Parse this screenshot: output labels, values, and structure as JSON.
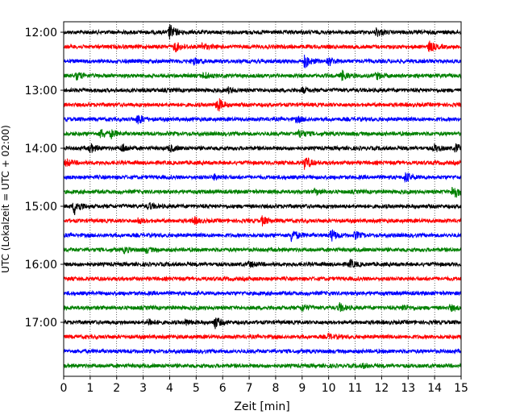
{
  "chart_data": {
    "type": "line",
    "title": "",
    "xlabel": "Zeit  [min]",
    "ylabel": "UTC (Lokalzeit = UTC + 02:00)",
    "xlim": [
      0,
      15
    ],
    "x_ticks": [
      "0",
      "1",
      "2",
      "3",
      "4",
      "5",
      "6",
      "7",
      "8",
      "9",
      "10",
      "11",
      "12",
      "13",
      "14",
      "15"
    ],
    "y_tick_labels": [
      "12:00",
      "13:00",
      "14:00",
      "15:00",
      "16:00",
      "17:00"
    ],
    "grid": "vertical dotted at each minute",
    "trace_colors": [
      "#000000",
      "#ff0000",
      "#0000ff",
      "#008000"
    ],
    "trace_interval_minutes": 15,
    "first_trace": "12:00",
    "last_trace": "17:45",
    "traces": [
      {
        "start": "12:00",
        "color": "#000000",
        "events": [
          [
            4.0,
            9
          ],
          [
            11.8,
            5
          ]
        ]
      },
      {
        "start": "12:15",
        "color": "#ff0000",
        "events": [
          [
            4.2,
            6
          ],
          [
            5.2,
            4
          ],
          [
            13.8,
            6
          ]
        ]
      },
      {
        "start": "12:30",
        "color": "#0000ff",
        "events": [
          [
            4.9,
            4
          ],
          [
            9.1,
            8
          ],
          [
            10.0,
            5
          ]
        ]
      },
      {
        "start": "12:45",
        "color": "#008000",
        "events": [
          [
            0.5,
            4
          ],
          [
            5.3,
            4
          ],
          [
            10.5,
            6
          ],
          [
            11.8,
            4
          ]
        ]
      },
      {
        "start": "13:00",
        "color": "#000000",
        "events": [
          [
            6.2,
            3
          ],
          [
            9.0,
            3
          ]
        ]
      },
      {
        "start": "13:15",
        "color": "#ff0000",
        "events": [
          [
            5.8,
            9
          ]
        ]
      },
      {
        "start": "13:30",
        "color": "#0000ff",
        "events": [
          [
            2.8,
            6
          ],
          [
            8.8,
            3
          ]
        ]
      },
      {
        "start": "13:45",
        "color": "#008000",
        "events": [
          [
            1.4,
            5
          ],
          [
            1.8,
            4
          ],
          [
            8.9,
            5
          ]
        ]
      },
      {
        "start": "14:00",
        "color": "#000000",
        "events": [
          [
            1.0,
            5
          ],
          [
            2.2,
            5
          ],
          [
            4.0,
            4
          ],
          [
            14.0,
            4
          ],
          [
            14.8,
            5
          ]
        ]
      },
      {
        "start": "14:15",
        "color": "#ff0000",
        "events": [
          [
            0.1,
            4
          ],
          [
            9.1,
            8
          ]
        ]
      },
      {
        "start": "14:30",
        "color": "#0000ff",
        "events": [
          [
            5.7,
            3
          ],
          [
            12.9,
            6
          ]
        ]
      },
      {
        "start": "14:45",
        "color": "#008000",
        "events": [
          [
            9.5,
            3
          ],
          [
            14.7,
            10
          ]
        ]
      },
      {
        "start": "15:00",
        "color": "#000000",
        "events": [
          [
            0.4,
            10
          ],
          [
            3.2,
            4
          ]
        ]
      },
      {
        "start": "15:15",
        "color": "#ff0000",
        "events": [
          [
            2.8,
            3
          ],
          [
            4.9,
            4
          ],
          [
            7.5,
            5
          ]
        ]
      },
      {
        "start": "15:30",
        "color": "#0000ff",
        "events": [
          [
            8.6,
            8
          ],
          [
            10.1,
            7
          ],
          [
            11.0,
            4
          ]
        ]
      },
      {
        "start": "15:45",
        "color": "#008000",
        "events": [
          [
            2.3,
            3
          ],
          [
            3.1,
            3
          ]
        ]
      },
      {
        "start": "16:00",
        "color": "#000000",
        "events": [
          [
            7.0,
            3
          ],
          [
            10.8,
            5
          ]
        ]
      },
      {
        "start": "16:15",
        "color": "#ff0000",
        "events": []
      },
      {
        "start": "16:30",
        "color": "#0000ff",
        "events": []
      },
      {
        "start": "16:45",
        "color": "#008000",
        "events": [
          [
            9.0,
            4
          ],
          [
            10.4,
            5
          ],
          [
            12.8,
            3
          ],
          [
            14.6,
            3
          ]
        ]
      },
      {
        "start": "17:00",
        "color": "#000000",
        "events": [
          [
            3.2,
            4
          ],
          [
            4.6,
            3
          ],
          [
            5.7,
            7
          ]
        ]
      },
      {
        "start": "17:15",
        "color": "#ff0000",
        "events": [
          [
            10.0,
            3
          ]
        ]
      },
      {
        "start": "17:30",
        "color": "#0000ff",
        "events": []
      },
      {
        "start": "17:45",
        "color": "#008000",
        "events": [
          [
            11.3,
            2
          ]
        ]
      }
    ]
  }
}
